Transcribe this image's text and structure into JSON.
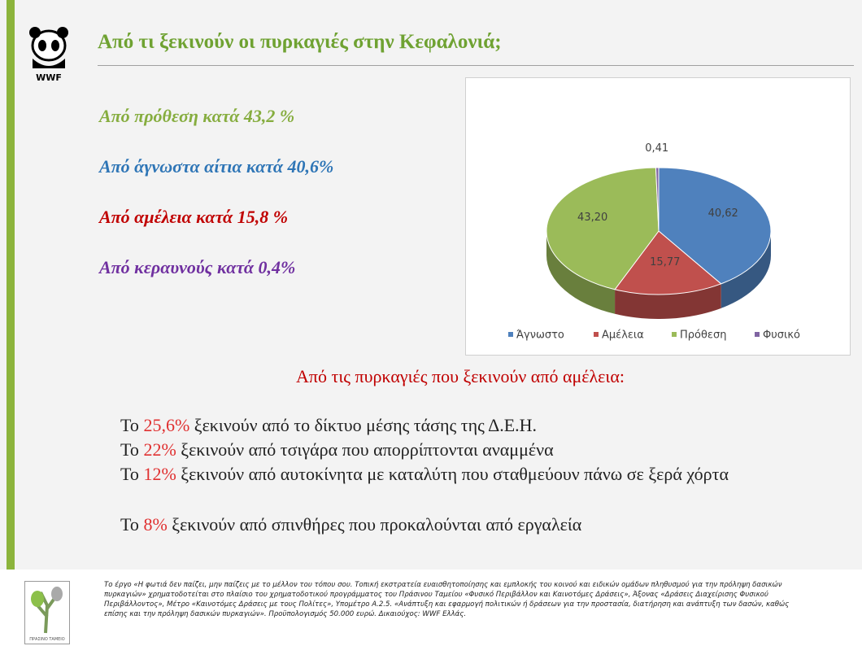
{
  "logo": {
    "text": "WWF"
  },
  "title": "Από τι ξεκινούν οι πυρκαγιές  στην Κεφαλονιά;",
  "highlights": [
    {
      "text": "Από πρόθεση κατά 43,2 %",
      "color": "#86ad3f"
    },
    {
      "text": "Από άγνωστα αίτια κατά 40,6%",
      "color": "#2e75b6"
    },
    {
      "text": "Από αμέλεια κατά 15,8 %",
      "color": "#c00000"
    },
    {
      "text": "Από κεραυνούς κατά 0,4%",
      "color": "#7030a0"
    }
  ],
  "chart_data": {
    "type": "pie",
    "categories": [
      "Άγνωστο",
      "Αμέλεια",
      "Πρόθεση",
      "Φυσικό"
    ],
    "values": [
      40.62,
      15.77,
      43.2,
      0.41
    ],
    "value_labels": [
      "40,62",
      "15,77",
      "43,20",
      "0,41"
    ],
    "colors": [
      "#4f81bd",
      "#c0504d",
      "#9bbb59",
      "#8064a2"
    ],
    "legend": "bottom"
  },
  "negligence": {
    "heading": "Από τις πυρκαγιές που ξεκινούν από αμέλεια:",
    "lines": [
      {
        "pre": "Το ",
        "pct": "25,6%",
        "post": " ξεκινούν από το δίκτυο μέσης τάσης της Δ.Ε.Η."
      },
      {
        "pre": "Το ",
        "pct": "22%",
        "post": " ξεκινούν από τσιγάρα που απορρίπτονται αναμμένα"
      },
      {
        "pre": "Το ",
        "pct": "12%",
        "post": " ξεκινούν από αυτοκίνητα με καταλύτη που σταθμεύουν πάνω σε ξερά χόρτα"
      },
      {
        "pre": "Το ",
        "pct": "8%",
        "post": " ξεκινούν από σπινθήρες που προκαλούνται από εργαλεία"
      }
    ]
  },
  "footer": {
    "logo_caption": "ΠΡΑΣΙΝΟ ΤΑΜΕΙΟ",
    "lines": [
      "Το έργο «Η φωτιά δεν παίζει, μην παίζεις με το μέλλον του τόπου σου. Τοπική εκστρατεία ευαισθητοποίησης και εμπλοκής του κοινού και ειδικών ομάδων πληθυσμού για την πρόληψη δασικών",
      "πυρκαγιών» χρηματοδοτείται στο πλαίσιο του χρηματοδοτικού προγράμματος του Πράσινου Ταμείου «Φυσικό Περιβάλλον και Καινοτόμες Δράσεις», Άξονας «Δράσεις Διαχείρισης Φυσικού",
      "Περιβάλλοντος», Μέτρο «Καινοτόμες Δράσεις με τους Πολίτες», Υπομέτρο Α.2.5. «Ανάπτυξη και εφαρμογή πολιτικών ή δράσεων για την προστασία, διατήρηση και ανάπτυξη των δασών, καθώς",
      "επίσης και την πρόληψη δασικών πυρκαγιών». Προϋπολογισμός 50.000 ευρώ. Δικαιούχος: WWF Ελλάς."
    ]
  }
}
